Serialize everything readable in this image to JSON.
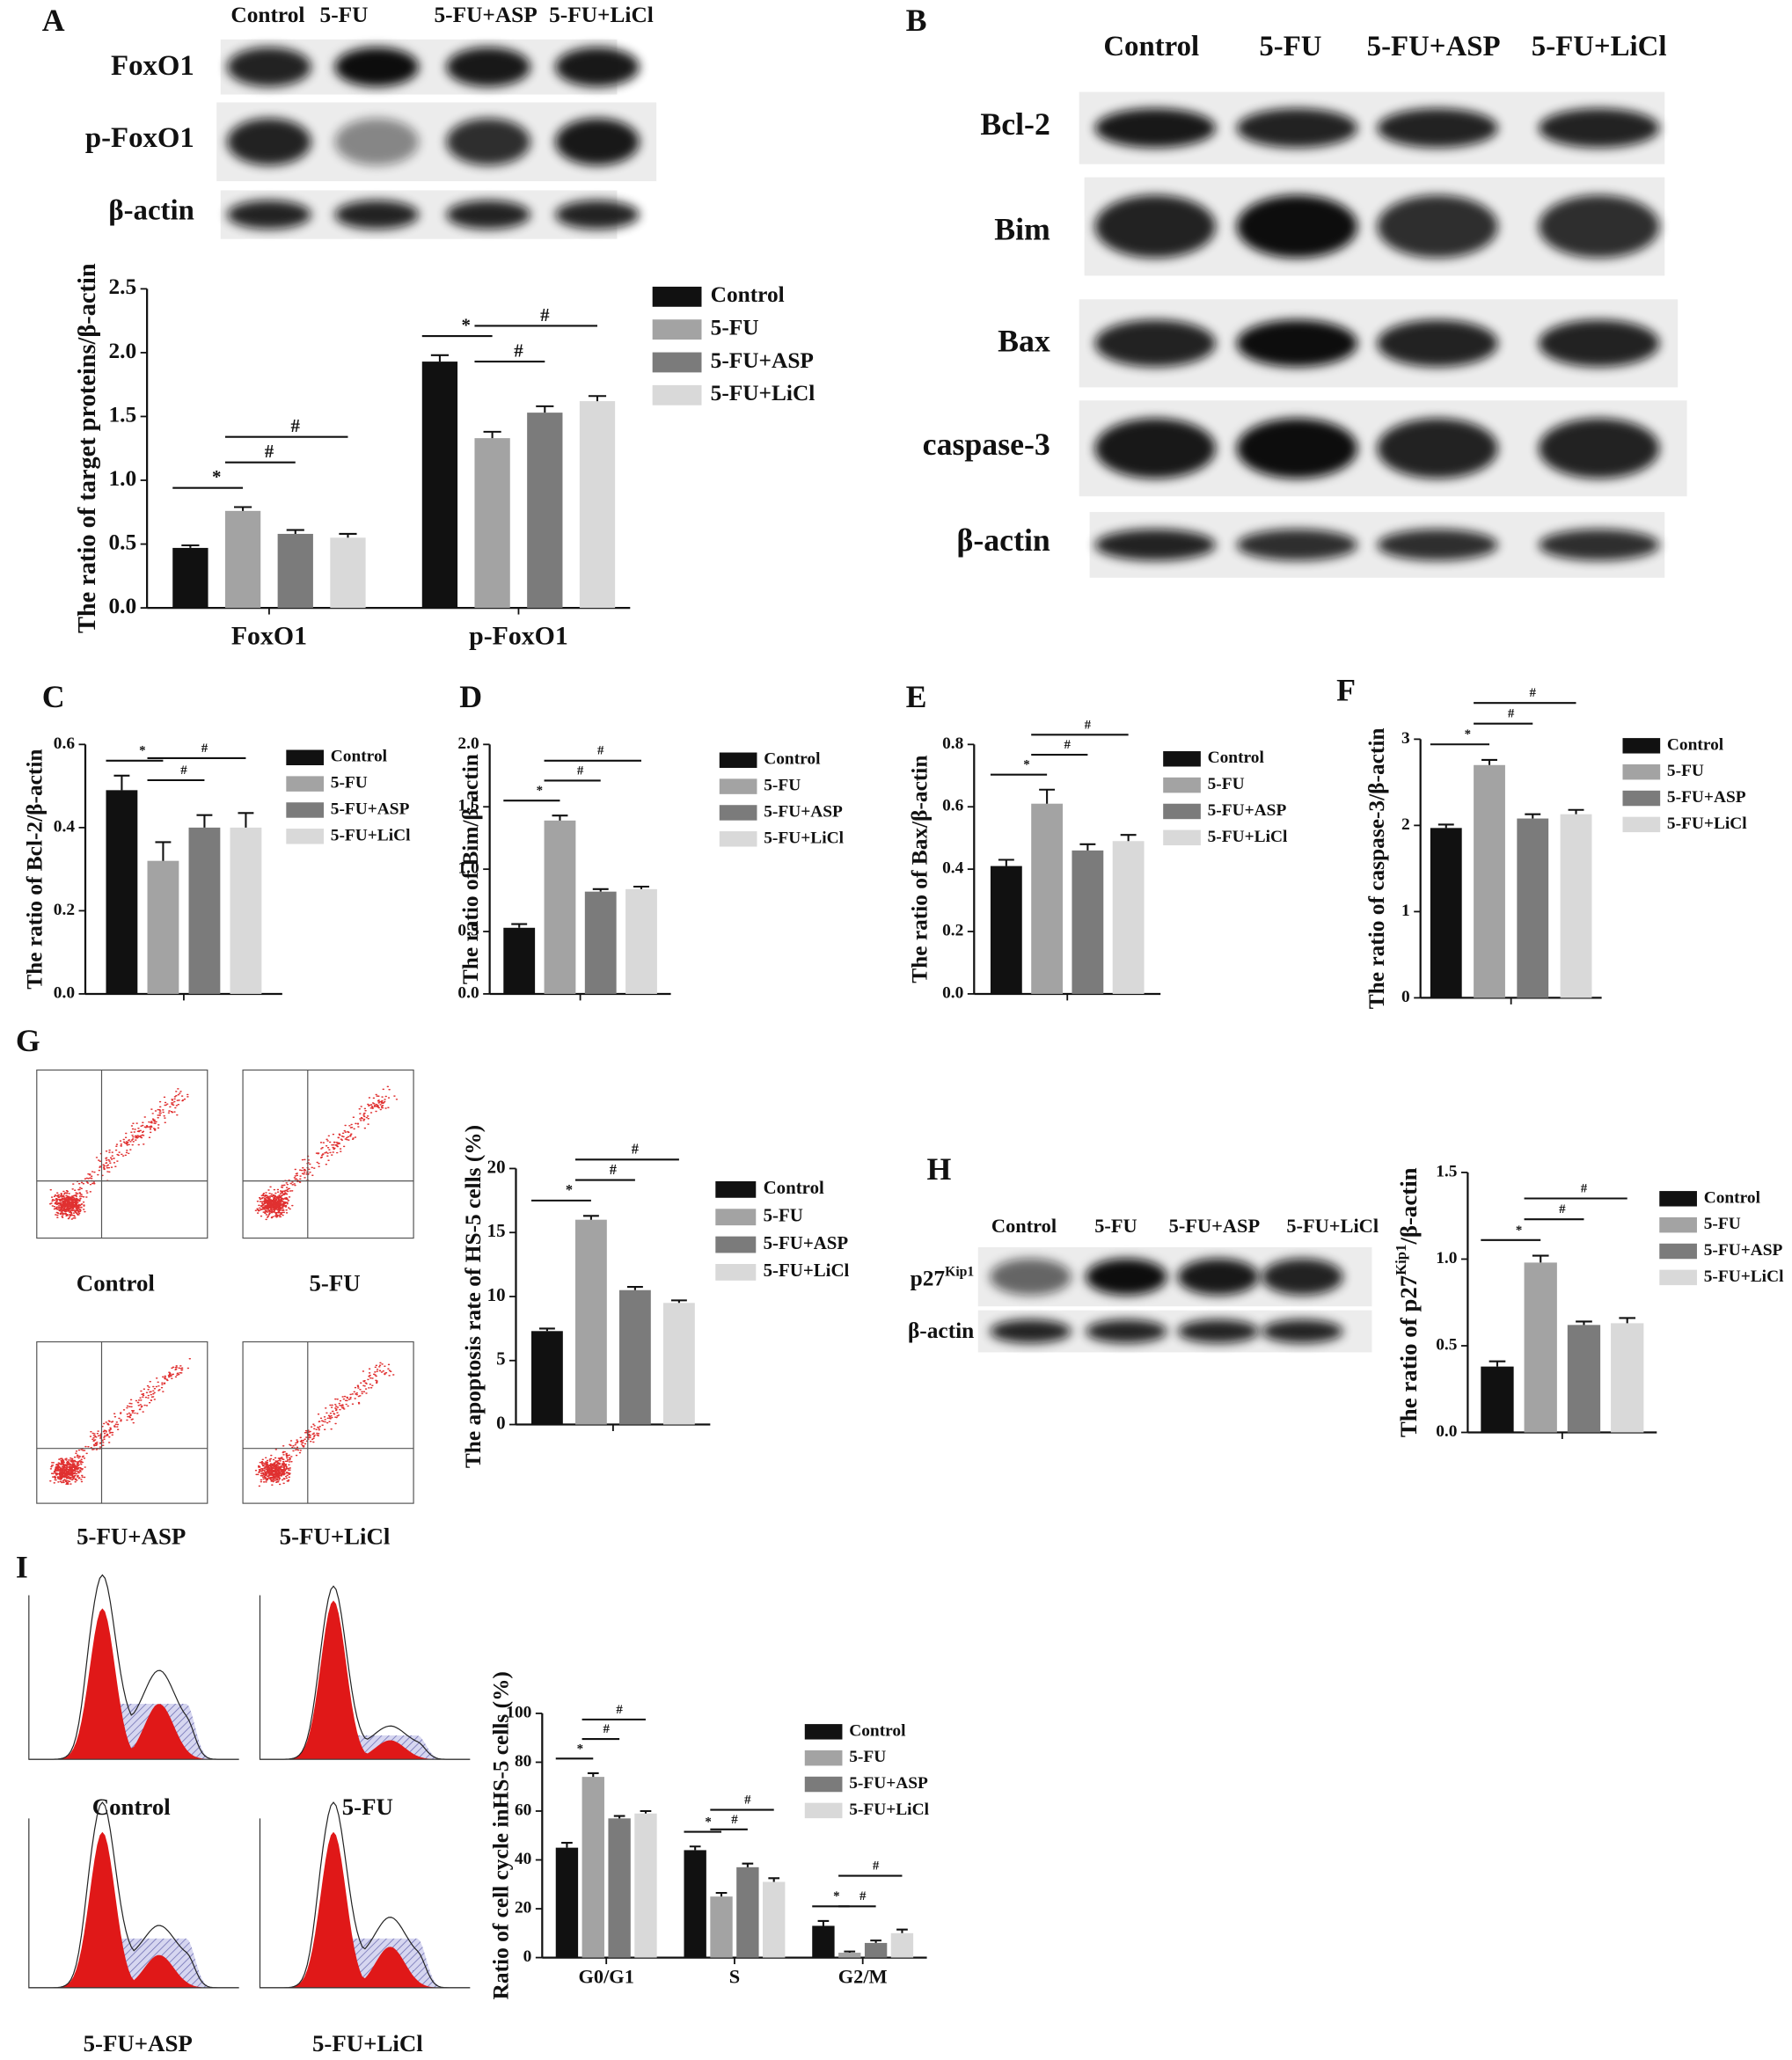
{
  "panel_letters": [
    "A",
    "B",
    "C",
    "D",
    "E",
    "F",
    "G",
    "H",
    "I"
  ],
  "blots": [
    {
      "lanes": [
        "Control",
        "5-FU",
        "5-FU+ASP",
        "5-FU+LiCl"
      ],
      "rows": [
        "FoxO1",
        "p-FoxO1",
        "β-actin"
      ]
    },
    {
      "lanes": [
        "Control",
        "5-FU",
        "5-FU+ASP",
        "5-FU+LiCl"
      ],
      "rows": [
        "Bcl-2",
        "Bim",
        "Bax",
        "caspase-3",
        "β-actin"
      ]
    },
    {
      "lanes": [
        "Control",
        "5-FU",
        "5-FU+ASP",
        "5-FU+LiCl"
      ],
      "rows": [
        [
          "p27",
          "Kip1"
        ],
        "β-actin"
      ]
    }
  ],
  "flow_cytometry": {
    "captions": [
      "Control",
      "5-FU",
      "5-FU+ASP",
      "5-FU+LiCl"
    ]
  },
  "cell_cycle": {
    "captions": [
      "Control",
      "5-FU",
      "5-FU+ASP",
      "5-FU+LiCl"
    ]
  },
  "chart_data": [
    {
      "type": "bar",
      "y_label": "The ratio of target proteins/β-actin",
      "categories": [
        "FoxO1",
        "p-FoxO1"
      ],
      "series": [
        {
          "name": "Control",
          "color": "#111111",
          "values": [
            0.47,
            1.93
          ],
          "errors": [
            0.02,
            0.05
          ]
        },
        {
          "name": "5-FU",
          "color": "#a3a3a3",
          "values": [
            0.76,
            1.33
          ],
          "errors": [
            0.03,
            0.05
          ]
        },
        {
          "name": "5-FU+ASP",
          "color": "#7b7b7b",
          "values": [
            0.58,
            1.53
          ],
          "errors": [
            0.03,
            0.05
          ]
        },
        {
          "name": "5-FU+LiCl",
          "color": "#d9d9d9",
          "values": [
            0.55,
            1.62
          ],
          "errors": [
            0.03,
            0.04
          ]
        }
      ],
      "annotations": [
        [
          "*",
          "#",
          "#"
        ],
        [
          "*",
          "#",
          "#"
        ]
      ],
      "ylim": [
        0,
        2.5
      ],
      "yticks": [
        {
          "value": 0,
          "label": "0.0"
        },
        0.5,
        {
          "value": 1,
          "label": "1.0"
        },
        1.5,
        {
          "value": 2,
          "label": "2.0"
        },
        2.5
      ]
    },
    {
      "type": "bar",
      "y_label": "The ratio of Bcl-2/β-actin",
      "categories": [
        null
      ],
      "series": [
        {
          "name": "Control",
          "color": "#111111",
          "values": [
            0.49
          ],
          "errors": [
            0.035
          ]
        },
        {
          "name": "5-FU",
          "color": "#a3a3a3",
          "values": [
            0.32
          ],
          "errors": [
            0.045
          ]
        },
        {
          "name": "5-FU+ASP",
          "color": "#7b7b7b",
          "values": [
            0.4
          ],
          "errors": [
            0.03
          ]
        },
        {
          "name": "5-FU+LiCl",
          "color": "#d9d9d9",
          "values": [
            0.4
          ],
          "errors": [
            0.035
          ]
        }
      ],
      "annotations": [
        [
          "*",
          "#",
          "#"
        ]
      ],
      "ylim": [
        0,
        0.6
      ],
      "yticks": [
        {
          "value": 0,
          "label": "0.0"
        },
        0.2,
        0.4,
        0.6
      ]
    },
    {
      "type": "bar",
      "y_label": "The ratio of Bim/β-actin",
      "categories": [
        null
      ],
      "series": [
        {
          "name": "Control",
          "color": "#111111",
          "values": [
            0.53
          ],
          "errors": [
            0.03
          ]
        },
        {
          "name": "5-FU",
          "color": "#a3a3a3",
          "values": [
            1.39
          ],
          "errors": [
            0.04
          ]
        },
        {
          "name": "5-FU+ASP",
          "color": "#7b7b7b",
          "values": [
            0.82
          ],
          "errors": [
            0.02
          ]
        },
        {
          "name": "5-FU+LiCl",
          "color": "#d9d9d9",
          "values": [
            0.84
          ],
          "errors": [
            0.02
          ]
        }
      ],
      "annotations": [
        [
          "*",
          "#",
          "#"
        ]
      ],
      "ylim": [
        0,
        2.0
      ],
      "yticks": [
        {
          "value": 0,
          "label": "0.0"
        },
        0.5,
        {
          "value": 1,
          "label": "1.0"
        },
        1.5,
        {
          "value": 2,
          "label": "2.0"
        }
      ]
    },
    {
      "type": "bar",
      "y_label": "The ratio of Bax/β-actin",
      "categories": [
        null
      ],
      "series": [
        {
          "name": "Control",
          "color": "#111111",
          "values": [
            0.41
          ],
          "errors": [
            0.02
          ]
        },
        {
          "name": "5-FU",
          "color": "#a3a3a3",
          "values": [
            0.61
          ],
          "errors": [
            0.045
          ]
        },
        {
          "name": "5-FU+ASP",
          "color": "#7b7b7b",
          "values": [
            0.46
          ],
          "errors": [
            0.02
          ]
        },
        {
          "name": "5-FU+LiCl",
          "color": "#d9d9d9",
          "values": [
            0.49
          ],
          "errors": [
            0.02
          ]
        }
      ],
      "annotations": [
        [
          "*",
          "#",
          "#"
        ]
      ],
      "ylim": [
        0,
        0.8
      ],
      "yticks": [
        {
          "value": 0,
          "label": "0.0"
        },
        0.2,
        0.4,
        0.6,
        0.8
      ]
    },
    {
      "type": "bar",
      "y_label": "The ratio of caspase-3/β-actin",
      "categories": [
        null
      ],
      "series": [
        {
          "name": "Control",
          "color": "#111111",
          "values": [
            1.97
          ],
          "errors": [
            0.04
          ]
        },
        {
          "name": "5-FU",
          "color": "#a3a3a3",
          "values": [
            2.7
          ],
          "errors": [
            0.06
          ]
        },
        {
          "name": "5-FU+ASP",
          "color": "#7b7b7b",
          "values": [
            2.08
          ],
          "errors": [
            0.05
          ]
        },
        {
          "name": "5-FU+LiCl",
          "color": "#d9d9d9",
          "values": [
            2.13
          ],
          "errors": [
            0.05
          ]
        }
      ],
      "annotations": [
        [
          "*",
          "#",
          "#"
        ]
      ],
      "ylim": [
        0,
        3
      ],
      "yticks": [
        0,
        1,
        2,
        3
      ]
    },
    {
      "type": "bar",
      "y_label": "The apoptosis rate of HS-5 cells (%)",
      "categories": [
        null
      ],
      "series": [
        {
          "name": "Control",
          "color": "#111111",
          "values": [
            7.3
          ],
          "errors": [
            0.2
          ]
        },
        {
          "name": "5-FU",
          "color": "#a3a3a3",
          "values": [
            16.0
          ],
          "errors": [
            0.3
          ]
        },
        {
          "name": "5-FU+ASP",
          "color": "#7b7b7b",
          "values": [
            10.5
          ],
          "errors": [
            0.25
          ]
        },
        {
          "name": "5-FU+LiCl",
          "color": "#d9d9d9",
          "values": [
            9.5
          ],
          "errors": [
            0.2
          ]
        }
      ],
      "annotations": [
        [
          "*",
          "#",
          "#"
        ]
      ],
      "ylim": [
        0,
        20
      ],
      "yticks": [
        0,
        5,
        10,
        15,
        20
      ]
    },
    {
      "type": "bar",
      "y_label": [
        "The ratio of p27",
        "Kip1",
        "/β-actin"
      ],
      "categories": [
        null
      ],
      "series": [
        {
          "name": "Control",
          "color": "#111111",
          "values": [
            0.38
          ],
          "errors": [
            0.03
          ]
        },
        {
          "name": "5-FU",
          "color": "#a3a3a3",
          "values": [
            0.98
          ],
          "errors": [
            0.04
          ]
        },
        {
          "name": "5-FU+ASP",
          "color": "#7b7b7b",
          "values": [
            0.62
          ],
          "errors": [
            0.02
          ]
        },
        {
          "name": "5-FU+LiCl",
          "color": "#d9d9d9",
          "values": [
            0.63
          ],
          "errors": [
            0.03
          ]
        }
      ],
      "annotations": [
        [
          "*",
          "#",
          "#"
        ]
      ],
      "ylim": [
        0,
        1.5
      ],
      "yticks": [
        {
          "value": 0,
          "label": "0.0"
        },
        0.5,
        {
          "value": 1,
          "label": "1.0"
        },
        1.5
      ]
    },
    {
      "type": "bar",
      "y_label": "Ratio of cell cycle inHS-5 cells (%)",
      "categories": [
        "G0/G1",
        "S",
        "G2/M"
      ],
      "series": [
        {
          "name": "Control",
          "color": "#111111",
          "values": [
            45,
            44,
            13
          ],
          "errors": [
            2,
            1.5,
            2
          ]
        },
        {
          "name": "5-FU",
          "color": "#a3a3a3",
          "values": [
            74,
            25,
            2
          ],
          "errors": [
            1.5,
            1.5,
            0.5
          ]
        },
        {
          "name": "5-FU+ASP",
          "color": "#7b7b7b",
          "values": [
            57,
            37,
            6
          ],
          "errors": [
            1,
            1.5,
            1
          ]
        },
        {
          "name": "5-FU+LiCl",
          "color": "#d9d9d9",
          "values": [
            59,
            31,
            10
          ],
          "errors": [
            1,
            1.5,
            1.5
          ]
        }
      ],
      "annotations": [
        [
          "*",
          "#",
          "#"
        ],
        [
          "*",
          "#",
          "#"
        ],
        [
          "*",
          "#",
          "#"
        ]
      ],
      "ylim": [
        0,
        100
      ],
      "yticks": [
        0,
        20,
        40,
        60,
        80,
        100
      ]
    }
  ]
}
